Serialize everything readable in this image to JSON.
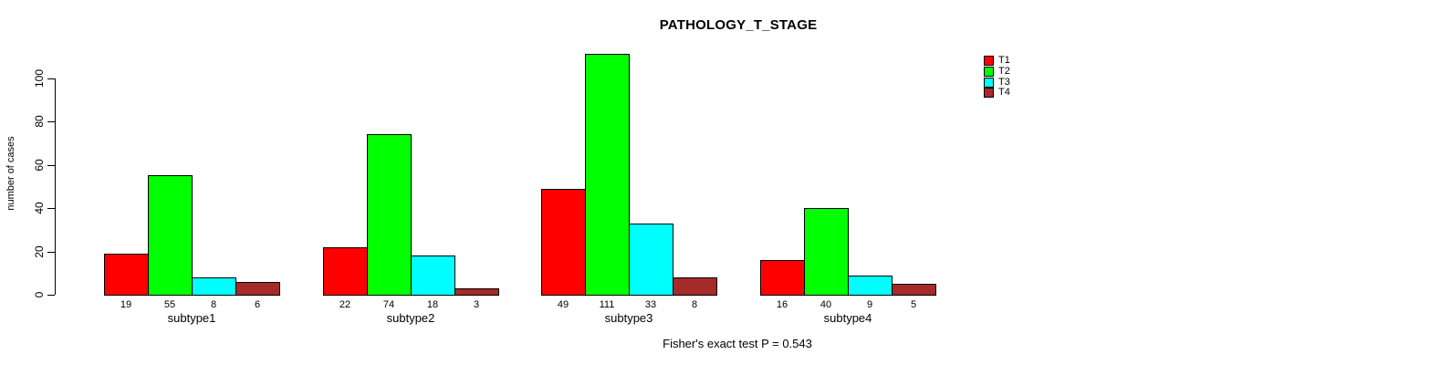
{
  "chart_data": {
    "type": "bar",
    "grouped": true,
    "title": "PATHOLOGY_T_STAGE",
    "xlabel": "",
    "ylabel": "number of cases",
    "categories": [
      "subtype1",
      "subtype2",
      "subtype3",
      "subtype4"
    ],
    "series": [
      {
        "name": "T1",
        "color": "#ff0000",
        "values": [
          19,
          22,
          49,
          16
        ]
      },
      {
        "name": "T2",
        "color": "#00ff00",
        "values": [
          55,
          74,
          111,
          40
        ]
      },
      {
        "name": "T3",
        "color": "#00ffff",
        "values": [
          8,
          18,
          33,
          9
        ]
      },
      {
        "name": "T4",
        "color": "#a52a2a",
        "values": [
          6,
          3,
          8,
          5
        ]
      }
    ],
    "bar_value_labels": [
      [
        19,
        55,
        8,
        6
      ],
      [
        22,
        74,
        18,
        3
      ],
      [
        49,
        111,
        33,
        8
      ],
      [
        16,
        40,
        9,
        5
      ]
    ],
    "yticks": [
      0,
      20,
      40,
      60,
      80,
      100
    ],
    "ylim": [
      0,
      100
    ],
    "grid": false,
    "legend_position": "top-right",
    "footnote": "Fisher's exact test P = 0.543",
    "axis_color": "#000000",
    "background_color": "#ffffff"
  }
}
